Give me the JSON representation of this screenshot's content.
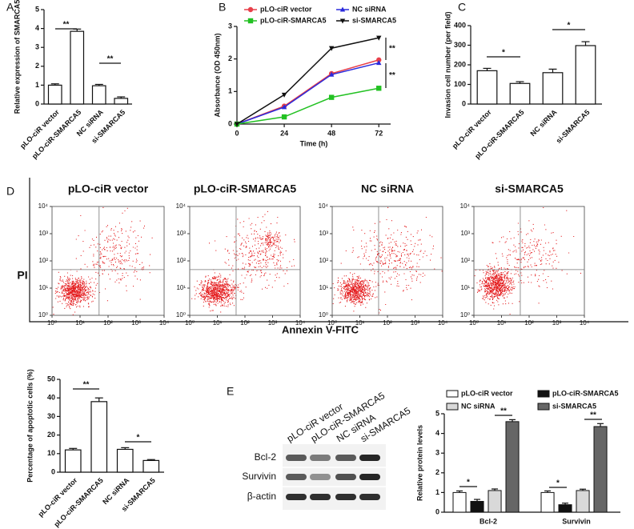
{
  "chart_data": [
    {
      "type": "bar",
      "panel": "A",
      "y_label": "Relative expression of SMARCA5",
      "categories": [
        "pLO-ciR vector",
        "pLO-ciR-SMARCA5",
        "NC siRNA",
        "si-SMARCA5"
      ],
      "values": [
        1.0,
        3.85,
        0.97,
        0.3
      ],
      "errors": [
        0.07,
        0.12,
        0.07,
        0.08
      ],
      "color": "#ffffff",
      "ylim": [
        0,
        5
      ],
      "yticks": [
        0,
        1,
        2,
        3,
        4,
        5
      ],
      "annotations": [
        "**",
        "**"
      ]
    },
    {
      "type": "line",
      "panel": "B",
      "x_label": "Time (h)",
      "y_label": "Absorbance (OD 450nm)",
      "x": [
        0,
        24,
        48,
        72
      ],
      "xlim": [
        0,
        78
      ],
      "xticks": [
        0,
        24,
        48,
        72
      ],
      "ylim": [
        0,
        3
      ],
      "yticks": [
        0,
        1,
        2,
        3
      ],
      "series": [
        {
          "name": "pLO-ciR vector",
          "color": "#e8404a",
          "marker": "circle",
          "values": [
            0,
            0.55,
            1.55,
            1.97
          ]
        },
        {
          "name": "NC siRNA",
          "color": "#2a2adc",
          "marker": "triangle",
          "values": [
            0,
            0.52,
            1.52,
            1.88
          ]
        },
        {
          "name": "pLO-ciR-SMARCA5",
          "color": "#22c122",
          "marker": "square",
          "values": [
            0,
            0.22,
            0.82,
            1.1
          ]
        },
        {
          "name": "si-SMARCA5",
          "color": "#111111",
          "marker": "triangle-down",
          "values": [
            0,
            0.9,
            2.33,
            2.65
          ]
        }
      ],
      "annotations": [
        "**",
        "**"
      ]
    },
    {
      "type": "bar",
      "panel": "C",
      "y_label": "Invasion cell number (per field)",
      "categories": [
        "pLO-ciR vector",
        "pLO-ciR-SMARCA5",
        "NC siRNA",
        "si-SMARCA5"
      ],
      "values": [
        170,
        105,
        160,
        298
      ],
      "errors": [
        12,
        9,
        18,
        20
      ],
      "color": "#ffffff",
      "ylim": [
        0,
        400
      ],
      "yticks": [
        0,
        100,
        200,
        300,
        400
      ],
      "annotations": [
        "*",
        "*"
      ]
    },
    {
      "type": "flow",
      "panel": "D",
      "titles": [
        "pLO-ciR vector",
        "pLO-ciR-SMARCA5",
        "NC siRNA",
        "si-SMARCA5"
      ],
      "x_label": "Annexin V-FITC",
      "y_label": "PI",
      "log": true,
      "color": "#e41a1c",
      "xlim": [
        1,
        10000
      ],
      "ylim": [
        1,
        10000
      ],
      "xticks": [
        {
          "value": 1,
          "label": "10⁰"
        },
        {
          "value": 10,
          "label": "10¹"
        },
        {
          "value": 100,
          "label": "10²"
        },
        {
          "value": 1000,
          "label": "10³"
        },
        {
          "value": 10000,
          "label": "10⁴"
        }
      ],
      "yticks": [
        {
          "value": 1,
          "label": "10⁰"
        },
        {
          "value": 10,
          "label": "10¹"
        },
        {
          "value": 100,
          "label": "10²"
        },
        {
          "value": 1000,
          "label": "10³"
        },
        {
          "value": 10000,
          "label": "10⁴"
        }
      ]
    },
    {
      "type": "bar",
      "y_label": "Percentage of apoptotic cells (%)",
      "categories": [
        "pLO-ciR vector",
        "pLO-ciR-SMARCA5",
        "NC siRNA",
        "si-SMARCA5"
      ],
      "values": [
        12,
        38,
        12.3,
        6.3
      ],
      "errors": [
        0.8,
        2,
        0.9,
        0.5
      ],
      "color": "#ffffff",
      "ylim": [
        0,
        50
      ],
      "yticks": [
        0,
        10,
        20,
        30,
        40,
        50
      ],
      "annotations": [
        "**",
        "*"
      ]
    },
    {
      "type": "blot",
      "panel": "E",
      "lanes": [
        "pLO-ciR vector",
        "pLO-ciR-SMARCA5",
        "NC siRNA",
        "si-SMARCA5"
      ],
      "rows": [
        "Bcl-2",
        "Survivin",
        "β-actin"
      ]
    },
    {
      "type": "grouped_bar",
      "y_label": "Relative protein levels",
      "categories": [
        "Bcl-2",
        "Survivin"
      ],
      "series": [
        {
          "name": "pLO-ciR vector",
          "color": "#ffffff",
          "values": [
            1.0,
            1.0
          ],
          "errors": [
            0.08,
            0.08
          ]
        },
        {
          "name": "pLO-ciR-SMARCA5",
          "color": "#111111",
          "values": [
            0.55,
            0.38
          ],
          "errors": [
            0.1,
            0.08
          ]
        },
        {
          "name": "NC siRNA",
          "color": "#d9d9d9",
          "values": [
            1.1,
            1.1
          ],
          "errors": [
            0.08,
            0.07
          ]
        },
        {
          "name": "si-SMARCA5",
          "color": "#666666",
          "values": [
            4.6,
            4.35
          ],
          "errors": [
            0.1,
            0.15
          ]
        }
      ],
      "ylim": [
        0,
        5
      ],
      "yticks": [
        0,
        1,
        2,
        3,
        4,
        5
      ],
      "annotations": [
        "*",
        "**",
        "*",
        "**"
      ]
    }
  ]
}
